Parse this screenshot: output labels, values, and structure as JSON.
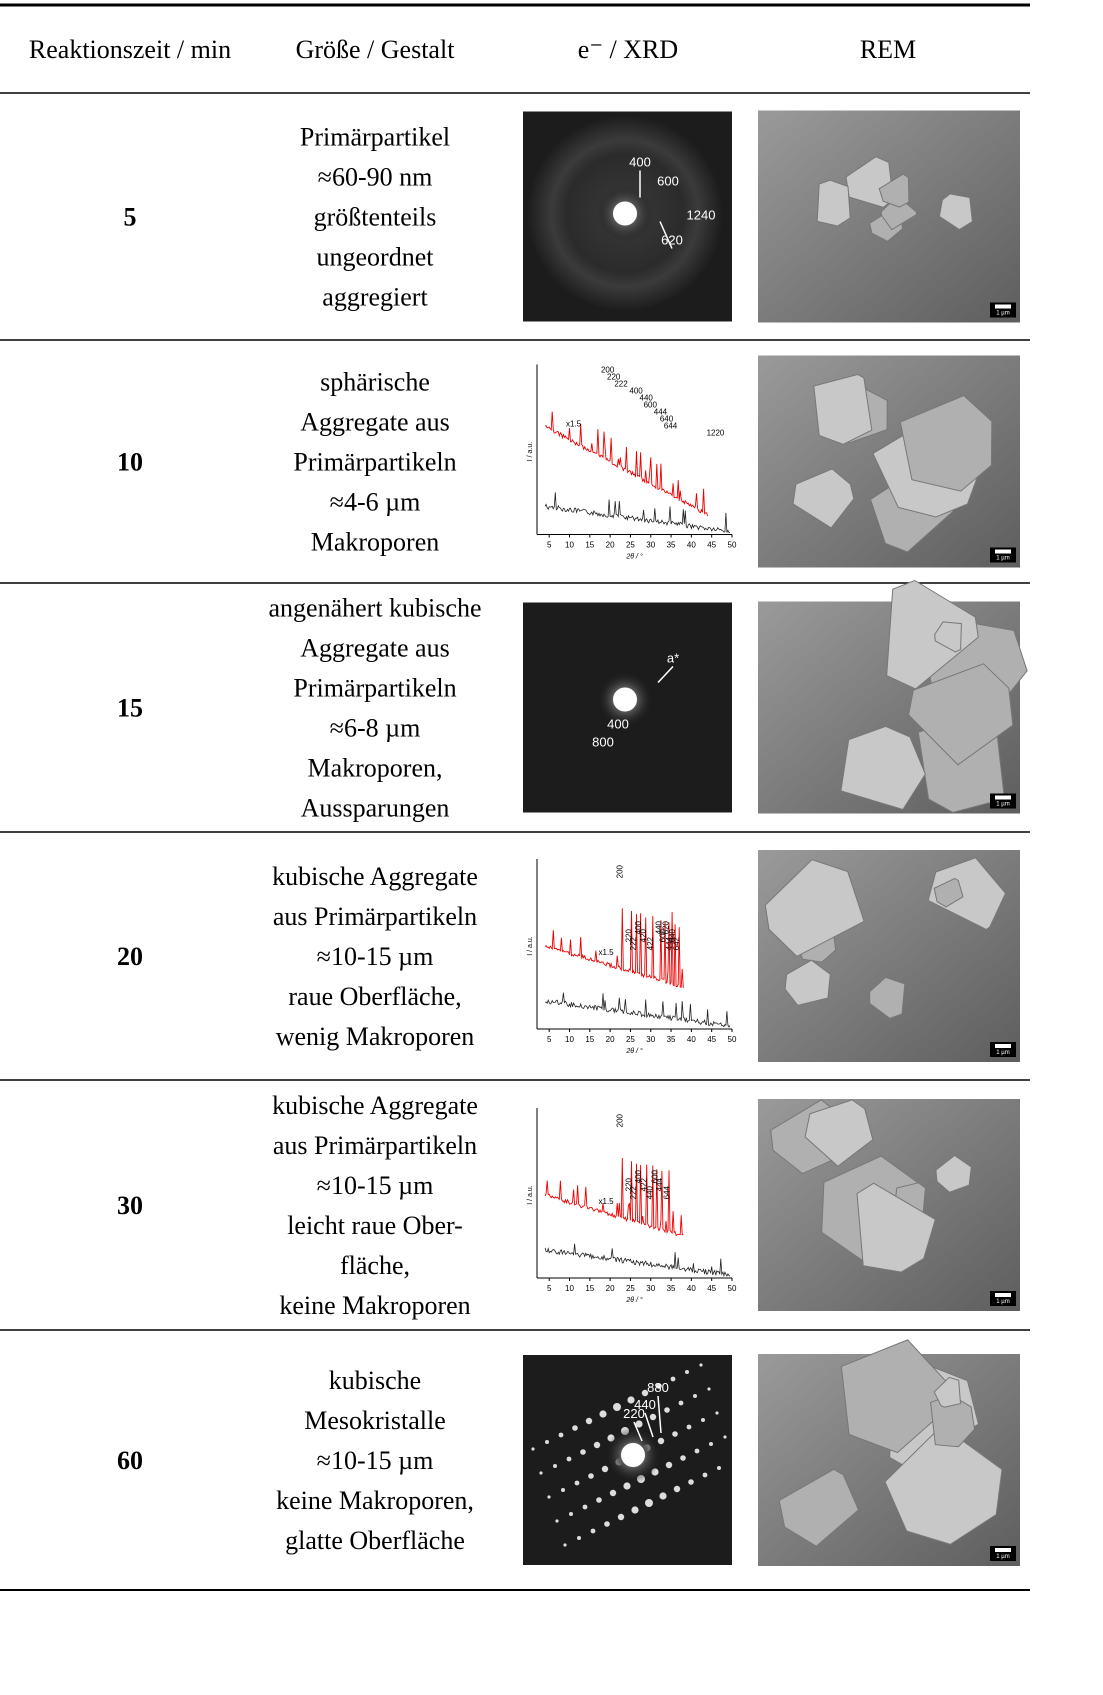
{
  "table": {
    "header": [
      "Reaktionszeit / min",
      "Größe / Gestalt",
      "e⁻ / XRD",
      "REM"
    ],
    "rows": [
      {
        "time": "5",
        "description": [
          "Primärpartikel",
          "≈60-90 nm",
          "größtenteils",
          "ungeordnet",
          "aggregiert"
        ],
        "pattern": {
          "kind": "ED",
          "labels": [
            "400",
            "600",
            "1240",
            "620"
          ]
        },
        "sem": {
          "scale_bar": "1 µm"
        }
      },
      {
        "time": "10",
        "description": [
          "sphärische",
          "Aggregate aus",
          "Primärpartikeln",
          "≈4-6 µm",
          "Makroporen"
        ],
        "pattern": {
          "kind": "XRD",
          "y_label": "I / a.u.",
          "x_label": "2θ / °",
          "xticks": [
            5,
            10,
            15,
            20,
            25,
            30,
            35,
            40,
            45,
            50
          ],
          "scale_note": "x1.5",
          "peaks": [
            "200",
            "220",
            "222",
            "400",
            "440",
            "600",
            "444",
            "640",
            "644",
            "1220"
          ]
        },
        "sem": {
          "scale_bar": "1 µm"
        }
      },
      {
        "time": "15",
        "description": [
          "angenähert kubische",
          "Aggregate aus",
          "Primärpartikeln",
          "≈6-8 µm",
          "Makroporen,",
          "Aussparungen"
        ],
        "pattern": {
          "kind": "ED",
          "labels": [
            "a*",
            "400",
            "800"
          ]
        },
        "sem": {
          "scale_bar": "1 µm"
        }
      },
      {
        "time": "20",
        "description": [
          "kubische Aggregate",
          "aus Primärpartikeln",
          "≈10-15 µm",
          "raue Oberfläche,",
          "wenig Makroporen"
        ],
        "pattern": {
          "kind": "XRD",
          "y_label": "I / a.u.",
          "x_label": "2θ / °",
          "xticks": [
            5,
            10,
            15,
            20,
            25,
            30,
            35,
            40,
            45,
            50
          ],
          "scale_note": "x1.5",
          "peaks": [
            "200",
            "220",
            "222",
            "400",
            "420",
            "422",
            "440",
            "600",
            "444",
            "620",
            "640",
            "642"
          ]
        },
        "sem": {
          "scale_bar": "1 µm"
        }
      },
      {
        "time": "30",
        "description": [
          "kubische Aggregate",
          "aus Primärpartikeln",
          "≈10-15 µm",
          "leicht raue Ober-",
          "fläche,",
          "keine Makroporen"
        ],
        "pattern": {
          "kind": "XRD",
          "y_label": "I / a.u.",
          "x_label": "2θ / °",
          "xticks": [
            5,
            10,
            15,
            20,
            25,
            30,
            35,
            40,
            45,
            50
          ],
          "scale_note": "x1.5",
          "peaks": [
            "200",
            "220",
            "222",
            "400",
            "422",
            "440",
            "600",
            "444",
            "644"
          ]
        },
        "sem": {
          "scale_bar": "1 µm"
        }
      },
      {
        "time": "60",
        "description": [
          "kubische",
          "Mesokristalle",
          "≈10-15 µm",
          "keine Makroporen,",
          "glatte Oberfläche"
        ],
        "pattern": {
          "kind": "ED",
          "labels": [
            "880",
            "440",
            "220"
          ]
        },
        "sem": {
          "scale_bar": "1 µm"
        }
      }
    ]
  }
}
